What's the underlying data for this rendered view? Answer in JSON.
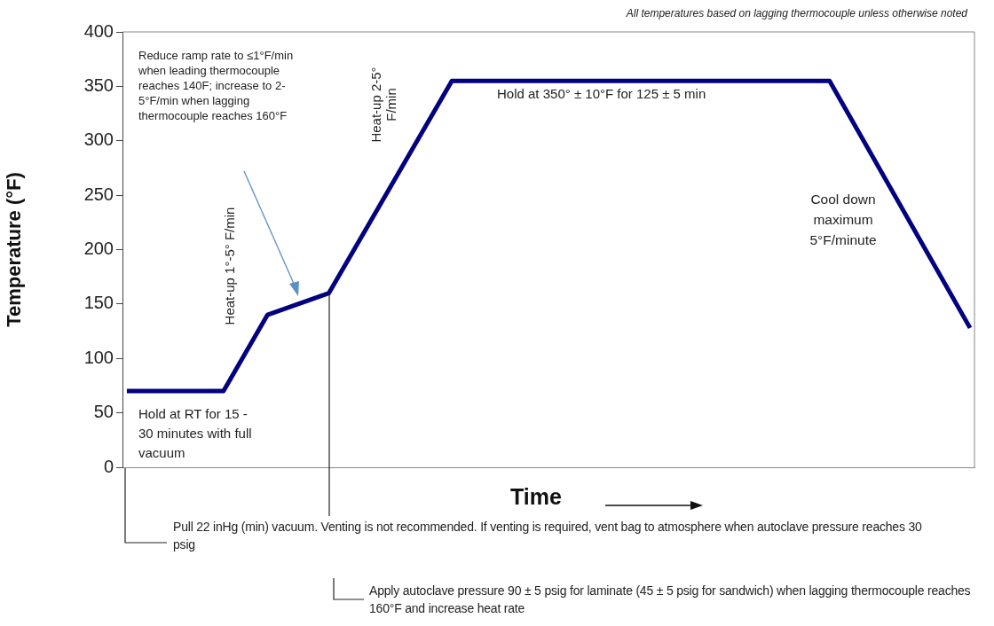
{
  "chart_data": {
    "type": "line",
    "ylabel": "Temperature (°F)",
    "xlabel": "Time",
    "categories": [
      null,
      null,
      null,
      null,
      null,
      null,
      null,
      null,
      null,
      null,
      null,
      null,
      null,
      null,
      null,
      null,
      null,
      null,
      null,
      null,
      null,
      null,
      null,
      null,
      null,
      null,
      null,
      null,
      null,
      null,
      null,
      null,
      null,
      null,
      null,
      null,
      null,
      null,
      null,
      null,
      null,
      null,
      null,
      null,
      null,
      null,
      null,
      null,
      null,
      null,
      null,
      null,
      null,
      null,
      null,
      null,
      null,
      null,
      null,
      null,
      null,
      null,
      null,
      null,
      null,
      null,
      null,
      null,
      null,
      null,
      null,
      null,
      null,
      null,
      null,
      null,
      null,
      null,
      null,
      null,
      null,
      null,
      null,
      null,
      null,
      null,
      null,
      null,
      null,
      null,
      null,
      null,
      null,
      null,
      null,
      null,
      null
    ],
    "series": [
      {
        "color": "#000080",
        "values": [
          70,
          null,
          null,
          null,
          null,
          null,
          null,
          null,
          null,
          null,
          null,
          70,
          null,
          null,
          null,
          null,
          140,
          null,
          null,
          null,
          null,
          null,
          null,
          160,
          null,
          null,
          null,
          null,
          null,
          null,
          null,
          null,
          null,
          null,
          null,
          null,
          null,
          355,
          null,
          null,
          null,
          null,
          null,
          null,
          null,
          null,
          null,
          null,
          null,
          null,
          null,
          null,
          null,
          null,
          null,
          null,
          null,
          null,
          null,
          null,
          null,
          null,
          null,
          null,
          null,
          null,
          null,
          null,
          null,
          null,
          null,
          null,
          null,
          null,
          null,
          null,
          null,
          null,
          null,
          null,
          355,
          null,
          null,
          null,
          null,
          null,
          null,
          null,
          null,
          null,
          null,
          null,
          null,
          null,
          null,
          null,
          128
        ]
      }
    ],
    "ylim": [
      0,
      400
    ],
    "yticks": [
      0,
      50,
      100,
      150,
      200,
      250,
      300,
      350,
      400
    ],
    "grid": false,
    "legend": false,
    "tick_labels": "y",
    "annotations": [
      "All temperatures  based on lagging thermocouple  unless otherwise noted",
      "Reduce ramp rate to ≤1°F/min when  leading thermocouple reaches 140F; increase to 2-5°F/min when lagging  thermocouple reaches 160°F",
      "Heat-up 1°-5° F/min",
      "Heat-up 2-5° F/min",
      "Hold at 350° ± 10°F for 125 ± 5 min",
      "Cool down maximum 5°F/minute",
      "Hold at RT  for 15 - 30 minutes with full vacuum",
      "Pull 22 inHg (min)  vacuum. Venting is not recommended.  If venting is required, vent bag to atmosphere when autoclave pressure reaches 30 psig",
      "Apply autoclave pressure 90 ± 5 psig for laminate (45 ± 5 psig for sandwich) when lagging thermocouple reaches 160°F and increase heat rate"
    ]
  }
}
